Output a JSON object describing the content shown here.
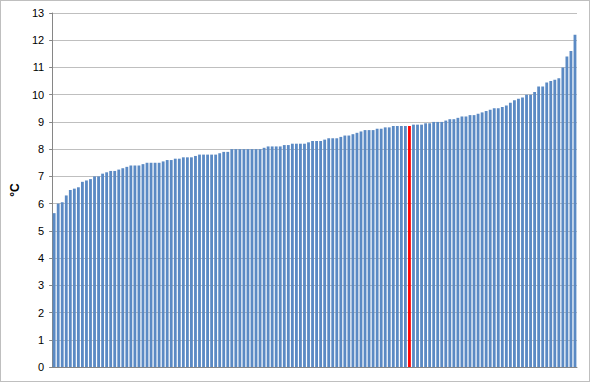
{
  "chart_data": {
    "type": "bar",
    "ylabel": "°C",
    "categories": [
      null,
      null,
      null,
      null,
      null,
      null,
      null,
      null,
      null,
      null,
      null,
      null,
      null,
      null,
      null,
      null,
      null,
      null,
      null,
      null,
      null,
      null,
      null,
      null,
      null,
      null,
      null,
      null,
      null,
      null,
      null,
      null,
      null,
      null,
      null,
      null,
      null,
      null,
      null,
      null,
      null,
      null,
      null,
      null,
      null,
      null,
      null,
      null,
      null,
      null,
      null,
      null,
      null,
      null,
      null,
      null,
      null,
      null,
      null,
      null,
      null,
      null,
      null,
      null,
      null,
      null,
      null,
      null,
      null,
      null,
      null,
      null,
      null,
      null,
      null,
      null,
      null,
      null,
      null,
      null,
      null,
      null,
      null,
      null,
      null,
      null,
      null,
      null,
      null,
      null,
      null,
      null,
      null,
      null,
      null,
      null,
      null,
      null,
      null,
      null,
      null,
      null,
      null,
      null,
      null,
      null,
      null,
      null,
      null,
      null,
      null,
      null,
      null,
      null,
      null,
      null,
      null,
      null,
      null,
      null,
      null,
      null,
      null,
      null,
      null,
      null,
      null,
      null,
      null,
      null
    ],
    "values": [
      5.65,
      6.0,
      6.05,
      6.3,
      6.5,
      6.55,
      6.6,
      6.8,
      6.85,
      6.9,
      7.0,
      7.0,
      7.1,
      7.15,
      7.2,
      7.2,
      7.25,
      7.3,
      7.35,
      7.4,
      7.4,
      7.4,
      7.45,
      7.5,
      7.5,
      7.5,
      7.5,
      7.55,
      7.6,
      7.6,
      7.65,
      7.65,
      7.7,
      7.7,
      7.7,
      7.75,
      7.8,
      7.8,
      7.8,
      7.8,
      7.8,
      7.85,
      7.9,
      7.9,
      8.0,
      8.0,
      8.0,
      8.0,
      8.0,
      8.0,
      8.0,
      8.0,
      8.05,
      8.1,
      8.1,
      8.1,
      8.1,
      8.15,
      8.15,
      8.2,
      8.2,
      8.2,
      8.2,
      8.25,
      8.3,
      8.3,
      8.3,
      8.35,
      8.4,
      8.4,
      8.4,
      8.45,
      8.5,
      8.5,
      8.55,
      8.6,
      8.65,
      8.7,
      8.7,
      8.7,
      8.75,
      8.75,
      8.8,
      8.8,
      8.85,
      8.85,
      8.85,
      8.85,
      8.85,
      8.9,
      8.9,
      8.9,
      8.95,
      8.95,
      9.0,
      9.0,
      9.0,
      9.05,
      9.1,
      9.1,
      9.15,
      9.2,
      9.2,
      9.25,
      9.25,
      9.3,
      9.35,
      9.4,
      9.45,
      9.5,
      9.5,
      9.55,
      9.6,
      9.7,
      9.8,
      9.85,
      9.9,
      10.0,
      10.0,
      10.1,
      10.3,
      10.3,
      10.45,
      10.5,
      10.55,
      10.6,
      11.0,
      11.4,
      11.6,
      12.2
    ],
    "colors": [
      "#5b8ac4",
      "#5b8ac4",
      "#5b8ac4",
      "#5b8ac4",
      "#5b8ac4",
      "#5b8ac4",
      "#5b8ac4",
      "#5b8ac4",
      "#5b8ac4",
      "#5b8ac4",
      "#5b8ac4",
      "#5b8ac4",
      "#5b8ac4",
      "#5b8ac4",
      "#5b8ac4",
      "#5b8ac4",
      "#5b8ac4",
      "#5b8ac4",
      "#5b8ac4",
      "#5b8ac4",
      "#5b8ac4",
      "#5b8ac4",
      "#5b8ac4",
      "#5b8ac4",
      "#5b8ac4",
      "#5b8ac4",
      "#5b8ac4",
      "#5b8ac4",
      "#5b8ac4",
      "#5b8ac4",
      "#5b8ac4",
      "#5b8ac4",
      "#5b8ac4",
      "#5b8ac4",
      "#5b8ac4",
      "#5b8ac4",
      "#5b8ac4",
      "#5b8ac4",
      "#5b8ac4",
      "#5b8ac4",
      "#5b8ac4",
      "#5b8ac4",
      "#5b8ac4",
      "#5b8ac4",
      "#5b8ac4",
      "#5b8ac4",
      "#5b8ac4",
      "#5b8ac4",
      "#5b8ac4",
      "#5b8ac4",
      "#5b8ac4",
      "#5b8ac4",
      "#5b8ac4",
      "#5b8ac4",
      "#5b8ac4",
      "#5b8ac4",
      "#5b8ac4",
      "#5b8ac4",
      "#5b8ac4",
      "#5b8ac4",
      "#5b8ac4",
      "#5b8ac4",
      "#5b8ac4",
      "#5b8ac4",
      "#5b8ac4",
      "#5b8ac4",
      "#5b8ac4",
      "#5b8ac4",
      "#5b8ac4",
      "#5b8ac4",
      "#5b8ac4",
      "#5b8ac4",
      "#5b8ac4",
      "#5b8ac4",
      "#5b8ac4",
      "#5b8ac4",
      "#5b8ac4",
      "#5b8ac4",
      "#5b8ac4",
      "#5b8ac4",
      "#5b8ac4",
      "#5b8ac4",
      "#5b8ac4",
      "#5b8ac4",
      "#5b8ac4",
      "#5b8ac4",
      "#5b8ac4",
      "#5b8ac4",
      "#ff0000",
      "#5b8ac4",
      "#5b8ac4",
      "#5b8ac4",
      "#5b8ac4",
      "#5b8ac4",
      "#5b8ac4",
      "#5b8ac4",
      "#5b8ac4",
      "#5b8ac4",
      "#5b8ac4",
      "#5b8ac4",
      "#5b8ac4",
      "#5b8ac4",
      "#5b8ac4",
      "#5b8ac4",
      "#5b8ac4",
      "#5b8ac4",
      "#5b8ac4",
      "#5b8ac4",
      "#5b8ac4",
      "#5b8ac4",
      "#5b8ac4",
      "#5b8ac4",
      "#5b8ac4",
      "#5b8ac4",
      "#5b8ac4",
      "#5b8ac4",
      "#5b8ac4",
      "#5b8ac4",
      "#5b8ac4",
      "#5b8ac4",
      "#5b8ac4",
      "#5b8ac4",
      "#5b8ac4",
      "#5b8ac4",
      "#5b8ac4",
      "#5b8ac4",
      "#5b8ac4",
      "#5b8ac4",
      "#5b8ac4",
      "#5b8ac4"
    ],
    "ylim": [
      0,
      13
    ],
    "yticks": [
      0,
      1,
      2,
      3,
      4,
      5,
      6,
      7,
      8,
      9,
      10,
      11,
      12,
      13
    ],
    "grid": true
  }
}
